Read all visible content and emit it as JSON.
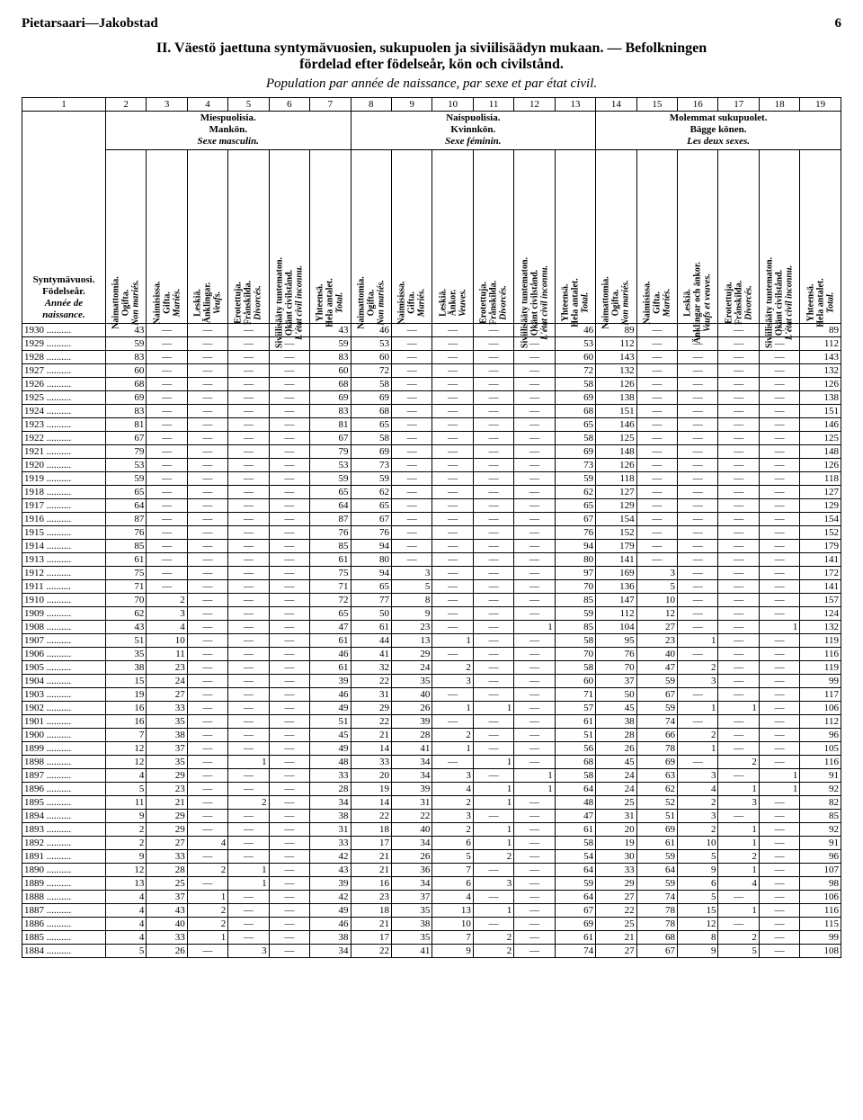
{
  "header": {
    "left": "Pietarsaari—Jakobstad",
    "page": "6"
  },
  "title": {
    "line1a": "II.  Väestö jaettuna syntymävuosien, sukupuolen ja siviilisäädyn mukaan.  —  Befolkningen",
    "line1b": "fördelad efter födelseår, kön och civilstånd.",
    "line2": "Population par année de naissance, par sexe et par état civil."
  },
  "colnums": [
    "1",
    "2",
    "3",
    "4",
    "5",
    "6",
    "7",
    "8",
    "9",
    "10",
    "11",
    "12",
    "13",
    "14",
    "15",
    "16",
    "17",
    "18",
    "19"
  ],
  "groups": {
    "male": {
      "l1": "Miespuolisia.",
      "l2": "Mankön.",
      "l3": "Sexe masculin."
    },
    "female": {
      "l1": "Naispuolisia.",
      "l2": "Kvinnkön.",
      "l3": "Sexe féminin."
    },
    "both": {
      "l1": "Molemmat sukupuolet.",
      "l2": "Bägge könen.",
      "l3": "Les deux sexes."
    }
  },
  "yearhead": {
    "l1": "Syntymävuosi.",
    "l2": "Födelseår.",
    "l3": "Année de naissance."
  },
  "rothead": {
    "nm": "Naimattomia.\nOgifta.\nNon mariés.",
    "mar": "Naimisissa.\nGifta.\nMariés.",
    "wid_m": "Leskiä.\nÄnklingar.\nVeufs.",
    "div": "Erotettuja.\nFrånskilda.\nDivorcés.",
    "unk": "Siviilisääty tuntematon.\nOkänt civilstånd.\nL'état civil inconnu.",
    "tot": "Yhteensä.\nHela antalet.\nTotal.",
    "wid_f": "Leskiä.\nÄnkor.\nVeuves.",
    "wid_b": "Leskiä.\nÄnklingar och änkor.\nVeufs et veuves."
  },
  "rows": [
    {
      "y": "1930",
      "c": [
        43,
        null,
        null,
        null,
        null,
        43,
        46,
        null,
        null,
        null,
        null,
        46,
        89,
        null,
        null,
        null,
        null,
        89
      ]
    },
    {
      "y": "1929",
      "c": [
        59,
        null,
        null,
        null,
        null,
        59,
        53,
        null,
        null,
        null,
        null,
        53,
        112,
        null,
        null,
        null,
        null,
        112
      ]
    },
    {
      "y": "1928",
      "c": [
        83,
        null,
        null,
        null,
        null,
        83,
        60,
        null,
        null,
        null,
        null,
        60,
        143,
        null,
        null,
        null,
        null,
        143
      ]
    },
    {
      "y": "1927",
      "c": [
        60,
        null,
        null,
        null,
        null,
        60,
        72,
        null,
        null,
        null,
        null,
        72,
        132,
        null,
        null,
        null,
        null,
        132
      ]
    },
    {
      "y": "1926",
      "c": [
        68,
        null,
        null,
        null,
        null,
        68,
        58,
        null,
        null,
        null,
        null,
        58,
        126,
        null,
        null,
        null,
        null,
        126
      ]
    },
    {
      "y": "1925",
      "c": [
        69,
        null,
        null,
        null,
        null,
        69,
        69,
        null,
        null,
        null,
        null,
        69,
        138,
        null,
        null,
        null,
        null,
        138
      ]
    },
    {
      "y": "1924",
      "c": [
        83,
        null,
        null,
        null,
        null,
        83,
        68,
        null,
        null,
        null,
        null,
        68,
        151,
        null,
        null,
        null,
        null,
        151
      ]
    },
    {
      "y": "1923",
      "c": [
        81,
        null,
        null,
        null,
        null,
        81,
        65,
        null,
        null,
        null,
        null,
        65,
        146,
        null,
        null,
        null,
        null,
        146
      ]
    },
    {
      "y": "1922",
      "c": [
        67,
        null,
        null,
        null,
        null,
        67,
        58,
        null,
        null,
        null,
        null,
        58,
        125,
        null,
        null,
        null,
        null,
        125
      ]
    },
    {
      "y": "1921",
      "c": [
        79,
        null,
        null,
        null,
        null,
        79,
        69,
        null,
        null,
        null,
        null,
        69,
        148,
        null,
        null,
        null,
        null,
        148
      ]
    },
    {
      "y": "1920",
      "c": [
        53,
        null,
        null,
        null,
        null,
        53,
        73,
        null,
        null,
        null,
        null,
        73,
        126,
        null,
        null,
        null,
        null,
        126
      ]
    },
    {
      "y": "1919",
      "c": [
        59,
        null,
        null,
        null,
        null,
        59,
        59,
        null,
        null,
        null,
        null,
        59,
        118,
        null,
        null,
        null,
        null,
        118
      ]
    },
    {
      "y": "1918",
      "c": [
        65,
        null,
        null,
        null,
        null,
        65,
        62,
        null,
        null,
        null,
        null,
        62,
        127,
        null,
        null,
        null,
        null,
        127
      ]
    },
    {
      "y": "1917",
      "c": [
        64,
        null,
        null,
        null,
        null,
        64,
        65,
        null,
        null,
        null,
        null,
        65,
        129,
        null,
        null,
        null,
        null,
        129
      ]
    },
    {
      "y": "1916",
      "c": [
        87,
        null,
        null,
        null,
        null,
        87,
        67,
        null,
        null,
        null,
        null,
        67,
        154,
        null,
        null,
        null,
        null,
        154
      ]
    },
    {
      "y": "1915",
      "c": [
        76,
        null,
        null,
        null,
        null,
        76,
        76,
        null,
        null,
        null,
        null,
        76,
        152,
        null,
        null,
        null,
        null,
        152
      ]
    },
    {
      "y": "1914",
      "c": [
        85,
        null,
        null,
        null,
        null,
        85,
        94,
        null,
        null,
        null,
        null,
        94,
        179,
        null,
        null,
        null,
        null,
        179
      ]
    },
    {
      "y": "1913",
      "c": [
        61,
        null,
        null,
        null,
        null,
        61,
        80,
        null,
        null,
        null,
        null,
        80,
        141,
        null,
        null,
        null,
        null,
        141
      ]
    },
    {
      "y": "1912",
      "c": [
        75,
        null,
        null,
        null,
        null,
        75,
        94,
        3,
        null,
        null,
        null,
        97,
        169,
        3,
        null,
        null,
        null,
        172
      ]
    },
    {
      "y": "1911",
      "c": [
        71,
        null,
        null,
        null,
        null,
        71,
        65,
        5,
        null,
        null,
        null,
        70,
        136,
        5,
        null,
        null,
        null,
        141
      ]
    },
    {
      "y": "1910",
      "c": [
        70,
        2,
        null,
        null,
        null,
        72,
        77,
        8,
        null,
        null,
        null,
        85,
        147,
        10,
        null,
        null,
        null,
        157
      ]
    },
    {
      "y": "1909",
      "c": [
        62,
        3,
        null,
        null,
        null,
        65,
        50,
        9,
        null,
        null,
        null,
        59,
        112,
        12,
        null,
        null,
        null,
        124
      ]
    },
    {
      "y": "1908",
      "c": [
        43,
        4,
        null,
        null,
        null,
        47,
        61,
        23,
        null,
        null,
        1,
        85,
        104,
        27,
        null,
        null,
        1,
        132
      ]
    },
    {
      "y": "1907",
      "c": [
        51,
        10,
        null,
        null,
        null,
        61,
        44,
        13,
        1,
        null,
        null,
        58,
        95,
        23,
        1,
        null,
        null,
        119
      ]
    },
    {
      "y": "1906",
      "c": [
        35,
        11,
        null,
        null,
        null,
        46,
        41,
        29,
        null,
        null,
        null,
        70,
        76,
        40,
        null,
        null,
        null,
        116
      ]
    },
    {
      "y": "1905",
      "c": [
        38,
        23,
        null,
        null,
        null,
        61,
        32,
        24,
        2,
        null,
        null,
        58,
        70,
        47,
        2,
        null,
        null,
        119
      ]
    },
    {
      "y": "1904",
      "c": [
        15,
        24,
        null,
        null,
        null,
        39,
        22,
        35,
        3,
        null,
        null,
        60,
        37,
        59,
        3,
        null,
        null,
        99
      ]
    },
    {
      "y": "1903",
      "c": [
        19,
        27,
        null,
        null,
        null,
        46,
        31,
        40,
        null,
        null,
        null,
        71,
        50,
        67,
        null,
        null,
        null,
        117
      ]
    },
    {
      "y": "1902",
      "c": [
        16,
        33,
        null,
        null,
        null,
        49,
        29,
        26,
        1,
        1,
        null,
        57,
        45,
        59,
        1,
        1,
        null,
        106
      ]
    },
    {
      "y": "1901",
      "c": [
        16,
        35,
        null,
        null,
        null,
        51,
        22,
        39,
        null,
        null,
        null,
        61,
        38,
        74,
        null,
        null,
        null,
        112
      ]
    },
    {
      "y": "1900",
      "c": [
        7,
        38,
        null,
        null,
        null,
        45,
        21,
        28,
        2,
        null,
        null,
        51,
        28,
        66,
        2,
        null,
        null,
        96
      ]
    },
    {
      "y": "1899",
      "c": [
        12,
        37,
        null,
        null,
        null,
        49,
        14,
        41,
        1,
        null,
        null,
        56,
        26,
        78,
        1,
        null,
        null,
        105
      ]
    },
    {
      "y": "1898",
      "c": [
        12,
        35,
        null,
        1,
        null,
        48,
        33,
        34,
        null,
        1,
        null,
        68,
        45,
        69,
        null,
        2,
        null,
        116
      ]
    },
    {
      "y": "1897",
      "c": [
        4,
        29,
        null,
        null,
        null,
        33,
        20,
        34,
        3,
        null,
        1,
        58,
        24,
        63,
        3,
        null,
        1,
        91
      ]
    },
    {
      "y": "1896",
      "c": [
        5,
        23,
        null,
        null,
        null,
        28,
        19,
        39,
        4,
        1,
        1,
        64,
        24,
        62,
        4,
        1,
        1,
        92
      ]
    },
    {
      "y": "1895",
      "c": [
        11,
        21,
        null,
        2,
        null,
        34,
        14,
        31,
        2,
        1,
        null,
        48,
        25,
        52,
        2,
        3,
        null,
        82
      ]
    },
    {
      "y": "1894",
      "c": [
        9,
        29,
        null,
        null,
        null,
        38,
        22,
        22,
        3,
        null,
        null,
        47,
        31,
        51,
        3,
        null,
        null,
        85
      ]
    },
    {
      "y": "1893",
      "c": [
        2,
        29,
        null,
        null,
        null,
        31,
        18,
        40,
        2,
        1,
        null,
        61,
        20,
        69,
        2,
        1,
        null,
        92
      ]
    },
    {
      "y": "1892",
      "c": [
        2,
        27,
        4,
        null,
        null,
        33,
        17,
        34,
        6,
        1,
        null,
        58,
        19,
        61,
        10,
        1,
        null,
        91
      ]
    },
    {
      "y": "1891",
      "c": [
        9,
        33,
        null,
        null,
        null,
        42,
        21,
        26,
        5,
        2,
        null,
        54,
        30,
        59,
        5,
        2,
        null,
        96
      ]
    },
    {
      "y": "1890",
      "c": [
        12,
        28,
        2,
        1,
        null,
        43,
        21,
        36,
        7,
        null,
        null,
        64,
        33,
        64,
        9,
        1,
        null,
        107
      ]
    },
    {
      "y": "1889",
      "c": [
        13,
        25,
        null,
        1,
        null,
        39,
        16,
        34,
        6,
        3,
        null,
        59,
        29,
        59,
        6,
        4,
        null,
        98
      ]
    },
    {
      "y": "1888",
      "c": [
        4,
        37,
        1,
        null,
        null,
        42,
        23,
        37,
        4,
        null,
        null,
        64,
        27,
        74,
        5,
        null,
        null,
        106
      ]
    },
    {
      "y": "1887",
      "c": [
        4,
        43,
        2,
        null,
        null,
        49,
        18,
        35,
        13,
        1,
        null,
        67,
        22,
        78,
        15,
        1,
        null,
        116
      ]
    },
    {
      "y": "1886",
      "c": [
        4,
        40,
        2,
        null,
        null,
        46,
        21,
        38,
        10,
        null,
        null,
        69,
        25,
        78,
        12,
        null,
        null,
        115
      ]
    },
    {
      "y": "1885",
      "c": [
        4,
        33,
        1,
        null,
        null,
        38,
        17,
        35,
        7,
        2,
        null,
        61,
        21,
        68,
        8,
        2,
        null,
        99
      ]
    },
    {
      "y": "1884",
      "c": [
        5,
        26,
        null,
        3,
        null,
        34,
        22,
        41,
        9,
        2,
        null,
        74,
        27,
        67,
        9,
        5,
        null,
        108
      ]
    }
  ]
}
